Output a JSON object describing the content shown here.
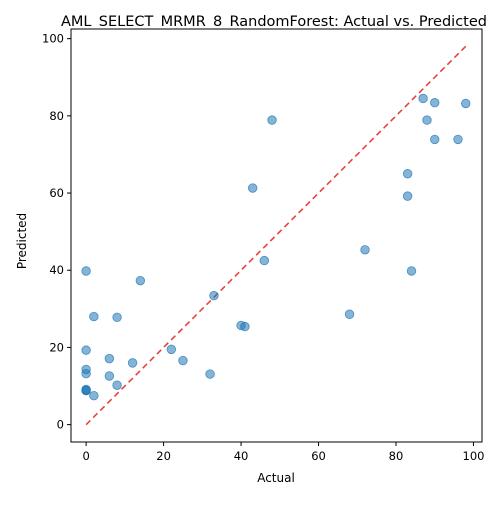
{
  "chart_data": {
    "type": "scatter",
    "title": "AML_SELECT_MRMR_8_RandomForest: Actual vs. Predicted",
    "xlabel": "Actual",
    "ylabel": "Predicted",
    "xlim": [
      -3.9,
      102.2
    ],
    "ylim": [
      -4.5,
      102.5
    ],
    "xticks": [
      0,
      20,
      40,
      60,
      80,
      100
    ],
    "yticks": [
      0,
      20,
      40,
      60,
      80,
      100
    ],
    "grid": false,
    "point_color": "#1f77b4",
    "reference_line_color": "#e8433b",
    "reference_line": {
      "x": [
        0,
        98
      ],
      "y": [
        0,
        98
      ],
      "style": "dashed"
    },
    "series": [
      {
        "x": [
          0,
          0,
          0,
          0,
          0,
          0,
          0,
          2,
          2,
          6,
          6,
          8,
          8,
          12,
          14,
          22,
          25,
          32,
          33,
          40,
          41,
          43,
          46,
          48,
          68,
          72,
          83,
          83,
          84,
          87,
          88,
          90,
          90,
          96,
          98
        ],
        "y": [
          39.8,
          19.3,
          14.3,
          13.2,
          9.1,
          8.8,
          8.9,
          28.0,
          7.5,
          17.1,
          12.6,
          27.8,
          10.2,
          16.0,
          37.3,
          19.5,
          16.6,
          13.1,
          33.4,
          25.7,
          25.4,
          61.3,
          42.5,
          78.9,
          28.6,
          45.3,
          65.0,
          59.2,
          39.8,
          84.5,
          78.9,
          83.4,
          73.9,
          73.9,
          83.2
        ]
      }
    ]
  }
}
